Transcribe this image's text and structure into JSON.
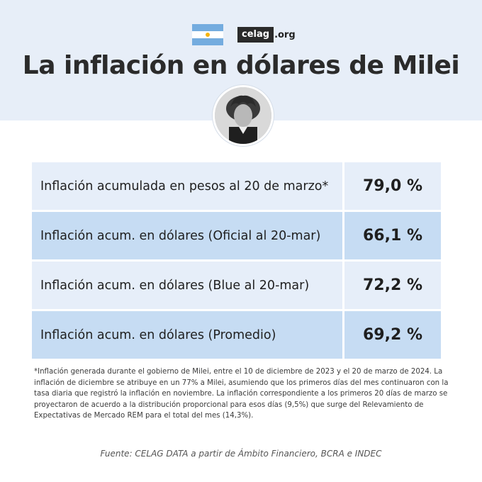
{
  "header": {
    "flag_icon": "argentina-flag-icon",
    "logo_text": "celag",
    "logo_suffix": ".org",
    "title": "La inflación en dólares de Milei"
  },
  "table": {
    "rows": [
      {
        "label": "Inflación acumulada en pesos al 20 de marzo*",
        "value": "79,0 %"
      },
      {
        "label": "Inflación acum. en dólares (Oficial al 20-mar)",
        "value": "66,1 %"
      },
      {
        "label": "Inflación acum. en dólares (Blue al 20-mar)",
        "value": "72,2 %"
      },
      {
        "label": "Inflación acum. en dólares (Promedio)",
        "value": "69,2 %"
      }
    ]
  },
  "footnote": "*Inflación generada durante el gobierno de Milei, entre el 10 de diciembre de 2023 y el 20 de marzo de 2024. La inflación de diciembre se atribuye en un 77% a Milei, asumiendo que los primeros días del mes continuaron con la tasa diaria que registró la inflación en noviembre. La inflación correspondiente a los primeros 20 días de marzo se proyectaron de acuerdo a la distribución proporcional para esos días (9,5%) que surge del Relevamiento de Expectativas de Mercado REM para el total del mes (14,3%).",
  "source": "Fuente: CELAG DATA a partir de Ámbito Financiero, BCRA e INDEC",
  "colors": {
    "band": "#e7eef8",
    "row_light": "#e6eef9",
    "row_dark": "#c6dcf3",
    "flag_sky": "#74acdf"
  }
}
